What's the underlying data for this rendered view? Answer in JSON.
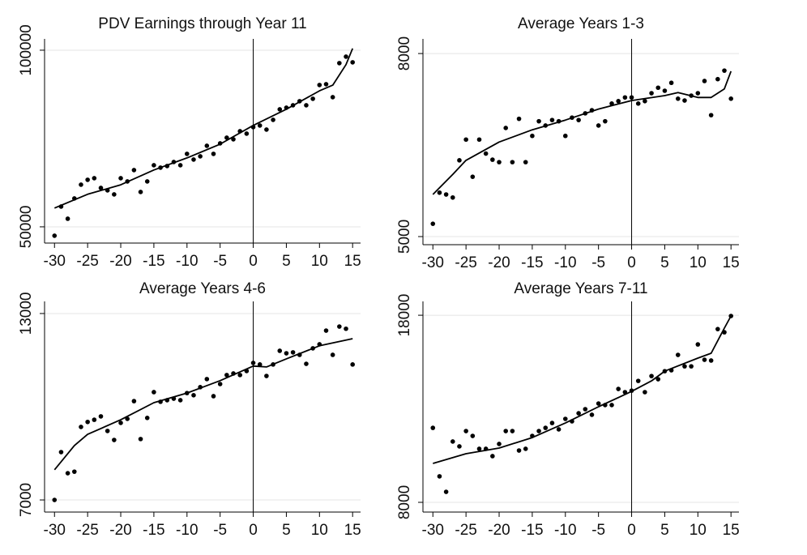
{
  "chart_data": [
    {
      "type": "scatter",
      "title": "PDV Earnings through Year 11",
      "color": "#000000",
      "reference_x": 0,
      "grid": true,
      "xlim": [
        -31.5,
        16.2
      ],
      "ylim": [
        45400,
        103200
      ],
      "xticks": [
        -30,
        -25,
        -20,
        -15,
        -10,
        -5,
        0,
        5,
        10,
        15
      ],
      "yticks": [
        50000,
        100000
      ],
      "x": [
        -30,
        -29,
        -28,
        -27,
        -26,
        -25,
        -24,
        -23,
        -22,
        -21,
        -20,
        -19,
        -18,
        -17,
        -16,
        -15,
        -14,
        -13,
        -12,
        -11,
        -10,
        -9,
        -8,
        -7,
        -6,
        -5,
        -4,
        -3,
        -2,
        -1,
        0,
        1,
        2,
        3,
        4,
        5,
        6,
        7,
        8,
        9,
        10,
        11,
        12,
        13,
        14,
        15
      ],
      "values": [
        47480,
        55740,
        52290,
        58030,
        61930,
        63310,
        63760,
        61010,
        60320,
        59180,
        63760,
        62850,
        66060,
        59860,
        62850,
        67430,
        66750,
        67210,
        68350,
        67430,
        70650,
        69040,
        69960,
        72940,
        70650,
        73630,
        75230,
        74780,
        77070,
        76380,
        78220,
        78680,
        77530,
        80280,
        83260,
        83720,
        84410,
        85560,
        84410,
        86250,
        90150,
        90370,
        86700,
        96340,
        98170,
        96570
      ],
      "fit": {
        "x": [
          -30,
          -25,
          -20,
          -15,
          -10,
          -5,
          0,
          5,
          10,
          12,
          14,
          15
        ],
        "values": [
          55300,
          59200,
          61900,
          66100,
          69500,
          73400,
          78700,
          83300,
          88500,
          90100,
          95900,
          100500
        ]
      }
    },
    {
      "type": "scatter",
      "title": "Average Years 1-3",
      "color": "#000000",
      "reference_x": 0,
      "grid": true,
      "xlim": [
        -31.5,
        16.2
      ],
      "ylim": [
        4867,
        8240
      ],
      "xticks": [
        -30,
        -25,
        -20,
        -15,
        -10,
        -5,
        0,
        5,
        10,
        15
      ],
      "yticks": [
        5000,
        8000
      ],
      "x": [
        -30,
        -29,
        -28,
        -27,
        -26,
        -25,
        -24,
        -23,
        -22,
        -21,
        -20,
        -19,
        -18,
        -17,
        -16,
        -15,
        -14,
        -13,
        -12,
        -11,
        -10,
        -9,
        -8,
        -7,
        -6,
        -5,
        -4,
        -3,
        -2,
        -1,
        0,
        1,
        2,
        3,
        4,
        5,
        6,
        7,
        8,
        9,
        10,
        11,
        12,
        13,
        14,
        15
      ],
      "values": [
        5210,
        5720,
        5690,
        5640,
        6250,
        6590,
        5980,
        6590,
        6360,
        6260,
        6220,
        6780,
        6220,
        6930,
        6220,
        6650,
        6890,
        6820,
        6910,
        6890,
        6650,
        6950,
        6910,
        7020,
        7070,
        6820,
        6890,
        7180,
        7220,
        7280,
        7280,
        7180,
        7220,
        7350,
        7440,
        7390,
        7520,
        7260,
        7230,
        7310,
        7350,
        7550,
        6990,
        7580,
        7720,
        7260
      ],
      "fit": {
        "x": [
          -30,
          -27,
          -25,
          -20,
          -15,
          -10,
          -5,
          0,
          5,
          7,
          10,
          12,
          14,
          15
        ],
        "values": [
          5690,
          6020,
          6250,
          6550,
          6750,
          6910,
          7090,
          7230,
          7310,
          7360,
          7280,
          7280,
          7420,
          7710
        ]
      }
    },
    {
      "type": "scatter",
      "title": "Average Years 4-6",
      "color": "#000000",
      "reference_x": 0,
      "grid": true,
      "xlim": [
        -31.5,
        16.2
      ],
      "ylim": [
        6610,
        13390
      ],
      "xticks": [
        -30,
        -25,
        -20,
        -15,
        -10,
        -5,
        0,
        5,
        10,
        15
      ],
      "yticks": [
        7000,
        13000
      ],
      "x": [
        -30,
        -29,
        -28,
        -27,
        -26,
        -25,
        -24,
        -23,
        -22,
        -21,
        -20,
        -19,
        -18,
        -17,
        -16,
        -15,
        -14,
        -13,
        -12,
        -11,
        -10,
        -9,
        -8,
        -7,
        -6,
        -5,
        -4,
        -3,
        -2,
        -1,
        0,
        1,
        2,
        3,
        4,
        5,
        6,
        7,
        8,
        9,
        10,
        11,
        12,
        13,
        14,
        15
      ],
      "values": [
        7000,
        8540,
        7860,
        7910,
        9350,
        9510,
        9580,
        9690,
        9220,
        8930,
        9480,
        9610,
        10180,
        8960,
        9640,
        10470,
        10160,
        10210,
        10260,
        10210,
        10440,
        10370,
        10630,
        10890,
        10340,
        10730,
        11020,
        11070,
        11020,
        11150,
        11410,
        11360,
        10990,
        11360,
        11800,
        11720,
        11750,
        11670,
        11380,
        11880,
        12010,
        12450,
        11670,
        12580,
        12510,
        11360
      ],
      "fit": {
        "x": [
          -30,
          -27,
          -25,
          -20,
          -15,
          -10,
          -5,
          0,
          2,
          5,
          10,
          15
        ],
        "values": [
          7970,
          8750,
          9110,
          9580,
          10130,
          10440,
          10840,
          11310,
          11280,
          11540,
          11960,
          12190
        ]
      }
    },
    {
      "type": "scatter",
      "title": "Average Years 7-11",
      "color": "#000000",
      "reference_x": 0,
      "grid": true,
      "xlim": [
        -31.5,
        16.2
      ],
      "ylim": [
        7480,
        18740
      ],
      "xticks": [
        -30,
        -25,
        -20,
        -15,
        -10,
        -5,
        0,
        5,
        10,
        15
      ],
      "yticks": [
        8000,
        18000
      ],
      "x": [
        -30,
        -29,
        -28,
        -27,
        -26,
        -25,
        -24,
        -23,
        -22,
        -21,
        -20,
        -19,
        -18,
        -17,
        -16,
        -15,
        -14,
        -13,
        -12,
        -11,
        -10,
        -9,
        -8,
        -7,
        -6,
        -5,
        -4,
        -3,
        -2,
        -1,
        0,
        1,
        2,
        3,
        4,
        5,
        6,
        7,
        8,
        9,
        10,
        11,
        12,
        13,
        14,
        15
      ],
      "values": [
        11980,
        9390,
        8560,
        11250,
        10990,
        11810,
        11550,
        10860,
        10860,
        10470,
        11120,
        11810,
        11810,
        10770,
        10860,
        11550,
        11810,
        11980,
        12240,
        11900,
        12460,
        12330,
        12760,
        12980,
        12680,
        13280,
        13200,
        13200,
        14060,
        13890,
        13970,
        14490,
        13890,
        14750,
        14580,
        15010,
        15060,
        15880,
        15270,
        15270,
        16440,
        15620,
        15580,
        17260,
        17090,
        17960
      ],
      "fit": {
        "x": [
          -30,
          -25,
          -20,
          -15,
          -10,
          -5,
          0,
          3,
          5,
          10,
          12,
          14,
          15
        ],
        "values": [
          10080,
          10600,
          10900,
          11460,
          12240,
          13110,
          13930,
          14490,
          15010,
          15710,
          15970,
          17310,
          17960
        ]
      }
    }
  ]
}
